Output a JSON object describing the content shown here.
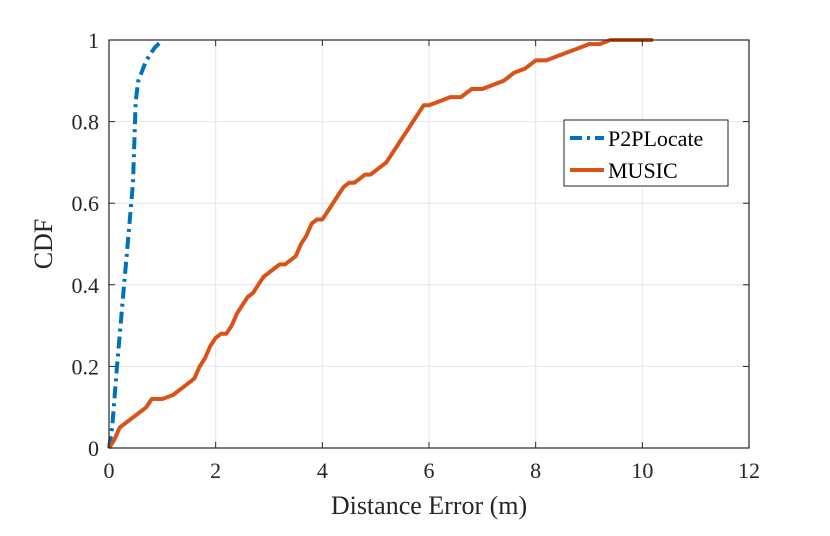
{
  "chart_data": {
    "type": "line",
    "xlabel": "Distance Error (m)",
    "ylabel": "CDF",
    "xlim": [
      0,
      12
    ],
    "ylim": [
      0,
      1
    ],
    "xticks": [
      "0",
      "2",
      "4",
      "6",
      "8",
      "10",
      "12"
    ],
    "yticks": [
      "0",
      "0.2",
      "0.4",
      "0.6",
      "0.8",
      "1"
    ],
    "grid": true,
    "legend_position": "right",
    "series": [
      {
        "name": "P2PLocate",
        "color": "#0072BD",
        "style": "dash-dot",
        "x": [
          0,
          0.06,
          0.15,
          0.25,
          0.35,
          0.45,
          0.5,
          0.55,
          0.7,
          0.85,
          1.0
        ],
        "y": [
          0,
          0.05,
          0.2,
          0.35,
          0.5,
          0.65,
          0.85,
          0.9,
          0.95,
          0.98,
          1.0
        ]
      },
      {
        "name": "MUSIC",
        "color": "#D95319",
        "style": "solid",
        "x": [
          0,
          0.1,
          0.2,
          0.3,
          0.5,
          0.6,
          0.7,
          0.8,
          1.0,
          1.2,
          1.4,
          1.5,
          1.6,
          1.7,
          1.8,
          1.9,
          2.0,
          2.1,
          2.2,
          2.3,
          2.4,
          2.5,
          2.6,
          2.7,
          2.8,
          2.9,
          3.0,
          3.1,
          3.2,
          3.3,
          3.4,
          3.5,
          3.6,
          3.7,
          3.8,
          3.9,
          4.0,
          4.1,
          4.2,
          4.3,
          4.4,
          4.5,
          4.6,
          4.7,
          4.8,
          4.9,
          5.0,
          5.1,
          5.2,
          5.3,
          5.4,
          5.5,
          5.6,
          5.7,
          5.8,
          5.9,
          6.0,
          6.2,
          6.4,
          6.6,
          6.8,
          7.0,
          7.2,
          7.4,
          7.6,
          7.8,
          8.0,
          8.2,
          8.4,
          8.6,
          8.8,
          9.0,
          9.2,
          9.4,
          9.6,
          9.8,
          10.0,
          10.2
        ],
        "y": [
          0,
          0.02,
          0.05,
          0.06,
          0.08,
          0.09,
          0.1,
          0.12,
          0.12,
          0.13,
          0.15,
          0.16,
          0.17,
          0.2,
          0.22,
          0.25,
          0.27,
          0.28,
          0.28,
          0.3,
          0.33,
          0.35,
          0.37,
          0.38,
          0.4,
          0.42,
          0.43,
          0.44,
          0.45,
          0.45,
          0.46,
          0.47,
          0.5,
          0.52,
          0.55,
          0.56,
          0.56,
          0.58,
          0.6,
          0.62,
          0.64,
          0.65,
          0.65,
          0.66,
          0.67,
          0.67,
          0.68,
          0.69,
          0.7,
          0.72,
          0.74,
          0.76,
          0.78,
          0.8,
          0.82,
          0.84,
          0.84,
          0.85,
          0.86,
          0.86,
          0.88,
          0.88,
          0.89,
          0.9,
          0.92,
          0.93,
          0.95,
          0.95,
          0.96,
          0.97,
          0.98,
          0.99,
          0.99,
          1.0,
          1.0,
          1.0,
          1.0,
          1.0
        ]
      }
    ]
  }
}
